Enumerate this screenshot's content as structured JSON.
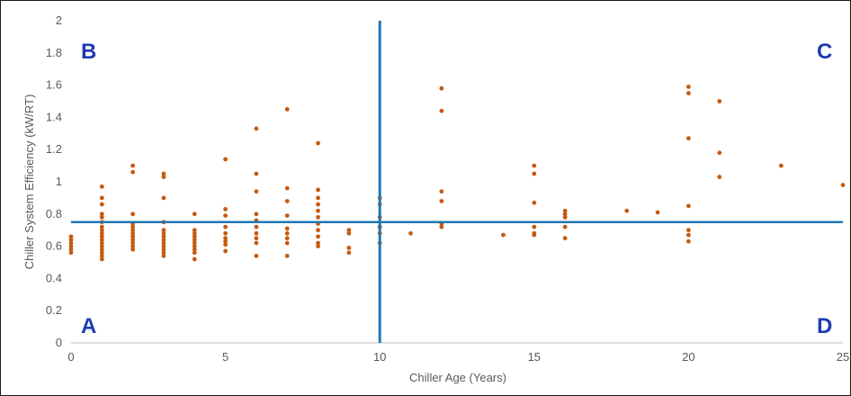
{
  "chart_data": {
    "type": "scatter",
    "title": "",
    "xlabel": "Chiller Age (Years)",
    "ylabel": "Chiller System Efficiency (kW/RT)",
    "xlim": [
      0,
      25
    ],
    "ylim": [
      0,
      2
    ],
    "xticks": [
      0,
      5,
      10,
      15,
      20,
      25
    ],
    "yticks": [
      0,
      0.2,
      0.4,
      0.6,
      0.8,
      1,
      1.2,
      1.4,
      1.6,
      1.8,
      2
    ],
    "grid": false,
    "legend": "none",
    "colors": {
      "points": "#C55A11",
      "lines": "#1F77B4",
      "quadrant_labels": "#1F3BB3"
    },
    "reference_lines": {
      "vertical_x": 10,
      "horizontal_y": 0.75
    },
    "quadrant_labels": {
      "top_left": "B",
      "top_right": "C",
      "bottom_left": "A",
      "bottom_right": "D"
    },
    "series": [
      {
        "points": [
          [
            0,
            0.56
          ],
          [
            0,
            0.58
          ],
          [
            0,
            0.6
          ],
          [
            0,
            0.62
          ],
          [
            0,
            0.64
          ],
          [
            0,
            0.66
          ],
          [
            1,
            0.97
          ],
          [
            1,
            0.9
          ],
          [
            1,
            0.86
          ],
          [
            1,
            0.8
          ],
          [
            1,
            0.78
          ],
          [
            1,
            0.75
          ],
          [
            1,
            0.72
          ],
          [
            1,
            0.7
          ],
          [
            1,
            0.68
          ],
          [
            1,
            0.66
          ],
          [
            1,
            0.64
          ],
          [
            1,
            0.62
          ],
          [
            1,
            0.6
          ],
          [
            1,
            0.58
          ],
          [
            1,
            0.56
          ],
          [
            1,
            0.54
          ],
          [
            1,
            0.52
          ],
          [
            2,
            1.1
          ],
          [
            2,
            1.06
          ],
          [
            2,
            0.8
          ],
          [
            2,
            0.74
          ],
          [
            2,
            0.72
          ],
          [
            2,
            0.7
          ],
          [
            2,
            0.68
          ],
          [
            2,
            0.66
          ],
          [
            2,
            0.64
          ],
          [
            2,
            0.62
          ],
          [
            2,
            0.6
          ],
          [
            2,
            0.58
          ],
          [
            3,
            1.05
          ],
          [
            3,
            1.03
          ],
          [
            3,
            0.9
          ],
          [
            3,
            0.75
          ],
          [
            3,
            0.7
          ],
          [
            3,
            0.68
          ],
          [
            3,
            0.66
          ],
          [
            3,
            0.64
          ],
          [
            3,
            0.62
          ],
          [
            3,
            0.6
          ],
          [
            3,
            0.58
          ],
          [
            3,
            0.56
          ],
          [
            3,
            0.54
          ],
          [
            4,
            0.8
          ],
          [
            4,
            0.7
          ],
          [
            4,
            0.68
          ],
          [
            4,
            0.66
          ],
          [
            4,
            0.64
          ],
          [
            4,
            0.62
          ],
          [
            4,
            0.6
          ],
          [
            4,
            0.58
          ],
          [
            4,
            0.56
          ],
          [
            4,
            0.52
          ],
          [
            5,
            1.14
          ],
          [
            5,
            0.83
          ],
          [
            5,
            0.79
          ],
          [
            5,
            0.72
          ],
          [
            5,
            0.68
          ],
          [
            5,
            0.65
          ],
          [
            5,
            0.63
          ],
          [
            5,
            0.61
          ],
          [
            5,
            0.57
          ],
          [
            6,
            1.33
          ],
          [
            6,
            1.05
          ],
          [
            6,
            0.94
          ],
          [
            6,
            0.8
          ],
          [
            6,
            0.76
          ],
          [
            6,
            0.72
          ],
          [
            6,
            0.68
          ],
          [
            6,
            0.65
          ],
          [
            6,
            0.62
          ],
          [
            6,
            0.54
          ],
          [
            7,
            1.45
          ],
          [
            7,
            0.96
          ],
          [
            7,
            0.88
          ],
          [
            7,
            0.79
          ],
          [
            7,
            0.71
          ],
          [
            7,
            0.68
          ],
          [
            7,
            0.65
          ],
          [
            7,
            0.62
          ],
          [
            7,
            0.54
          ],
          [
            8,
            1.24
          ],
          [
            8,
            0.95
          ],
          [
            8,
            0.9
          ],
          [
            8,
            0.86
          ],
          [
            8,
            0.82
          ],
          [
            8,
            0.78
          ],
          [
            8,
            0.74
          ],
          [
            8,
            0.7
          ],
          [
            8,
            0.66
          ],
          [
            8,
            0.62
          ],
          [
            8,
            0.6
          ],
          [
            9,
            0.7
          ],
          [
            9,
            0.68
          ],
          [
            9,
            0.59
          ],
          [
            9,
            0.56
          ],
          [
            10,
            0.9
          ],
          [
            10,
            0.86
          ],
          [
            10,
            0.78
          ],
          [
            10,
            0.72
          ],
          [
            10,
            0.68
          ],
          [
            10,
            0.62
          ],
          [
            11,
            0.68
          ],
          [
            12,
            1.58
          ],
          [
            12,
            1.44
          ],
          [
            12,
            0.94
          ],
          [
            12,
            0.88
          ],
          [
            12,
            0.74
          ],
          [
            12,
            0.72
          ],
          [
            14,
            0.67
          ],
          [
            15,
            1.1
          ],
          [
            15,
            1.05
          ],
          [
            15,
            0.87
          ],
          [
            15,
            0.72
          ],
          [
            15,
            0.68
          ],
          [
            15,
            0.67
          ],
          [
            16,
            0.82
          ],
          [
            16,
            0.8
          ],
          [
            16,
            0.78
          ],
          [
            16,
            0.72
          ],
          [
            16,
            0.65
          ],
          [
            18,
            0.82
          ],
          [
            19,
            0.81
          ],
          [
            20,
            1.59
          ],
          [
            20,
            1.55
          ],
          [
            20,
            1.27
          ],
          [
            20,
            0.85
          ],
          [
            20,
            0.7
          ],
          [
            20,
            0.67
          ],
          [
            20,
            0.63
          ],
          [
            21,
            1.5
          ],
          [
            21,
            1.18
          ],
          [
            21,
            1.03
          ],
          [
            23,
            1.1
          ],
          [
            25,
            0.98
          ]
        ]
      }
    ]
  }
}
